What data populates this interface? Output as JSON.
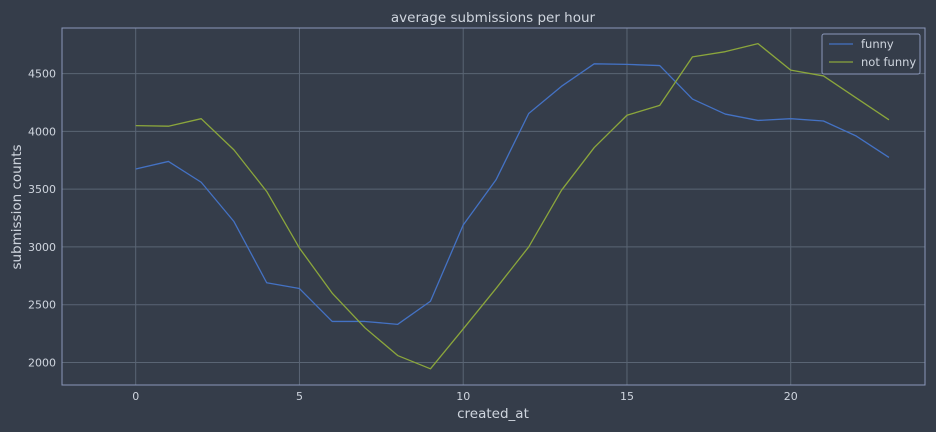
{
  "chart_data": {
    "type": "line",
    "title": "average submissions per hour",
    "xlabel": "created_at",
    "ylabel": "submission counts",
    "xlim": [
      -2.25,
      24.1
    ],
    "ylim": [
      1805,
      4895
    ],
    "xticks": [
      0,
      5,
      10,
      15,
      20
    ],
    "yticks": [
      2000,
      2500,
      3000,
      3500,
      4000,
      4500
    ],
    "grid": true,
    "legend_position": "top-right",
    "x": [
      0,
      1,
      2,
      3,
      4,
      5,
      6,
      7,
      8,
      9,
      10,
      11,
      12,
      13,
      14,
      15,
      16,
      17,
      18,
      19,
      20,
      21,
      22,
      23
    ],
    "series": [
      {
        "name": "funny",
        "color": "#4472c4",
        "values": [
          3675,
          3740,
          3560,
          3220,
          2690,
          2640,
          2355,
          2355,
          2330,
          2530,
          3190,
          3580,
          4155,
          4390,
          4585,
          4580,
          4570,
          4280,
          4150,
          4095,
          4110,
          4090,
          3960,
          3775
        ]
      },
      {
        "name": "not funny",
        "color": "#8ba63c",
        "values": [
          4050,
          4045,
          4110,
          3840,
          3480,
          2990,
          2600,
          2300,
          2060,
          1945,
          2290,
          2640,
          3000,
          3490,
          3860,
          4140,
          4225,
          4645,
          4690,
          4760,
          4530,
          4480,
          4290,
          4100
        ]
      }
    ]
  },
  "colors": {
    "background": "#353d4a",
    "axes_frame": "#8a98ba",
    "grid": "#5a6574"
  }
}
